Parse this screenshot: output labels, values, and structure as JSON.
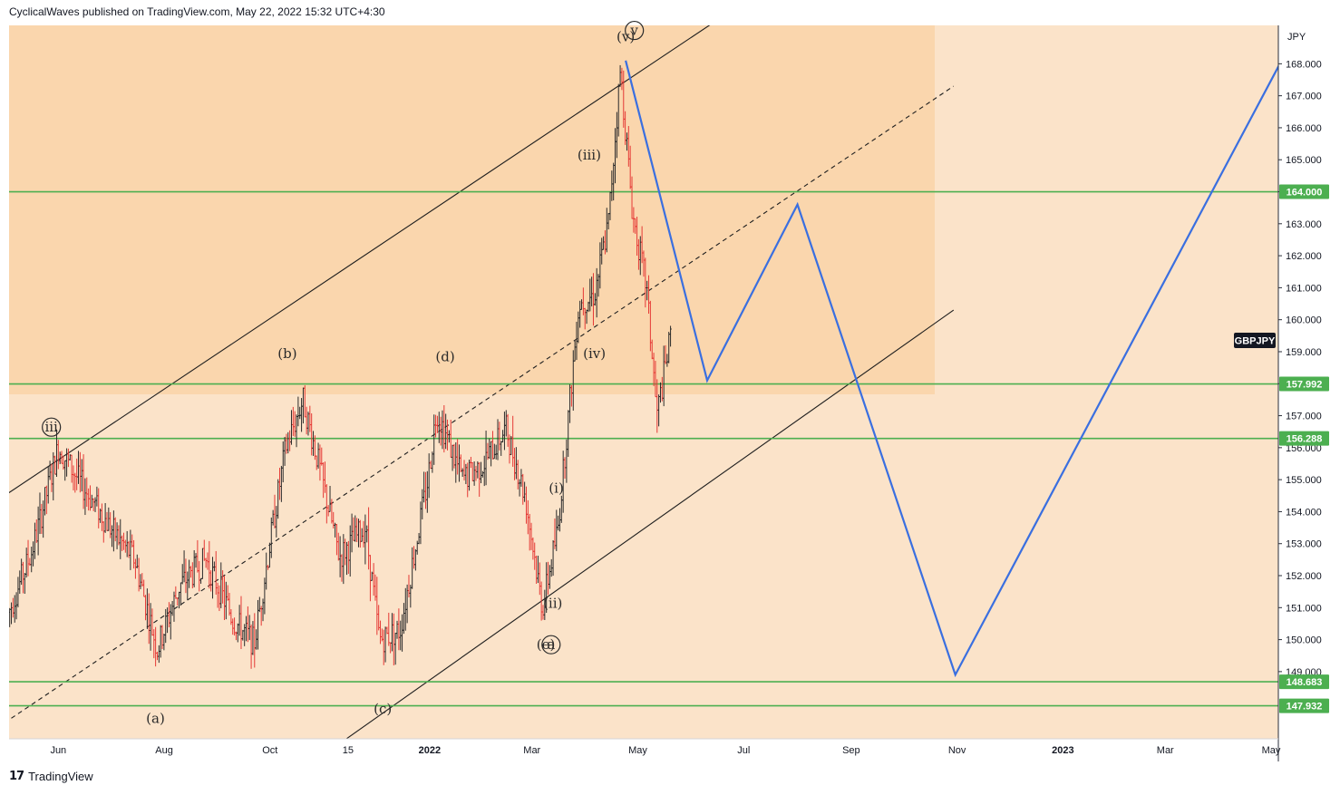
{
  "header": {
    "publisher": "CyclicalWaves",
    "published_text": "published on TradingView.com, May 22, 2022 15:32 UTC+4:30"
  },
  "footer": {
    "brand": "TradingView"
  },
  "chart_data": {
    "type": "candlestick",
    "symbol_tag": "GBPJPY",
    "currency_label": "JPY",
    "ylim": [
      146.9,
      169.2
    ],
    "y_ticks": [
      "149.000",
      "150.000",
      "151.000",
      "152.000",
      "153.000",
      "154.000",
      "155.000",
      "156.000",
      "157.000",
      "158.000",
      "159.000",
      "160.000",
      "161.000",
      "162.000",
      "163.000",
      "164.000",
      "165.000",
      "166.000",
      "167.000",
      "168.000"
    ],
    "x_ticks": [
      {
        "label": "Jun",
        "date": "2021-06-01"
      },
      {
        "label": "Aug",
        "date": "2021-08-01"
      },
      {
        "label": "Oct",
        "date": "2021-10-01"
      },
      {
        "label": "15",
        "date": "2021-11-15"
      },
      {
        "label": "2022",
        "date": "2022-01-01"
      },
      {
        "label": "Mar",
        "date": "2022-03-01"
      },
      {
        "label": "May",
        "date": "2022-05-01"
      },
      {
        "label": "Jul",
        "date": "2022-07-01"
      },
      {
        "label": "Sep",
        "date": "2022-09-01"
      },
      {
        "label": "Nov",
        "date": "2022-11-01"
      },
      {
        "label": "2023",
        "date": "2023-01-01"
      },
      {
        "label": "Mar",
        "date": "2023-03-01"
      },
      {
        "label": "May",
        "date": "2023-05-01"
      }
    ],
    "horizontal_levels": [
      {
        "value": 164.0,
        "label": "164.000"
      },
      {
        "value": 157.992,
        "label": "157.992"
      },
      {
        "value": 156.288,
        "label": "156.288"
      },
      {
        "value": 148.683,
        "label": "148.683"
      },
      {
        "value": 147.932,
        "label": "147.932"
      }
    ],
    "price_path": [
      {
        "date": "2021-05-03",
        "price": 150.8
      },
      {
        "date": "2021-05-17",
        "price": 152.8
      },
      {
        "date": "2021-06-01",
        "price": 156.0
      },
      {
        "date": "2021-06-15",
        "price": 154.8
      },
      {
        "date": "2021-07-01",
        "price": 153.5
      },
      {
        "date": "2021-07-15",
        "price": 152.5
      },
      {
        "date": "2021-07-28",
        "price": 149.7
      },
      {
        "date": "2021-08-10",
        "price": 151.7
      },
      {
        "date": "2021-08-25",
        "price": 152.5
      },
      {
        "date": "2021-09-10",
        "price": 150.6
      },
      {
        "date": "2021-09-22",
        "price": 149.9
      },
      {
        "date": "2021-10-01",
        "price": 153.0
      },
      {
        "date": "2021-10-10",
        "price": 156.0
      },
      {
        "date": "2021-10-20",
        "price": 157.5
      },
      {
        "date": "2021-10-29",
        "price": 155.5
      },
      {
        "date": "2021-11-10",
        "price": 152.6
      },
      {
        "date": "2021-11-25",
        "price": 153.5
      },
      {
        "date": "2021-12-03",
        "price": 150.0
      },
      {
        "date": "2021-12-15",
        "price": 150.3
      },
      {
        "date": "2021-12-31",
        "price": 155.0
      },
      {
        "date": "2022-01-05",
        "price": 157.2
      },
      {
        "date": "2022-01-20",
        "price": 155.0
      },
      {
        "date": "2022-02-01",
        "price": 155.5
      },
      {
        "date": "2022-02-14",
        "price": 156.6
      },
      {
        "date": "2022-02-25",
        "price": 154.5
      },
      {
        "date": "2022-03-07",
        "price": 151.0
      },
      {
        "date": "2022-03-16",
        "price": 153.5
      },
      {
        "date": "2022-03-28",
        "price": 160.5
      },
      {
        "date": "2022-04-06",
        "price": 160.8
      },
      {
        "date": "2022-04-14",
        "price": 163.0
      },
      {
        "date": "2022-04-21",
        "price": 167.8
      },
      {
        "date": "2022-04-28",
        "price": 163.3
      },
      {
        "date": "2022-05-06",
        "price": 161.0
      },
      {
        "date": "2022-05-12",
        "price": 157.0
      },
      {
        "date": "2022-05-20",
        "price": 159.5
      }
    ],
    "projection_path": [
      {
        "date": "2022-04-24",
        "price": 168.1
      },
      {
        "date": "2022-06-10",
        "price": 158.1
      },
      {
        "date": "2022-08-01",
        "price": 163.6
      },
      {
        "date": "2022-10-31",
        "price": 148.9
      },
      {
        "date": "2023-05-10",
        "price": 168.4
      }
    ],
    "channel_upper": [
      {
        "date": "2021-05-01",
        "price": 154.5
      },
      {
        "date": "2022-06-25",
        "price": 169.7
      }
    ],
    "channel_mid": [
      {
        "date": "2021-05-01",
        "price": 147.4
      },
      {
        "date": "2022-10-30",
        "price": 167.3
      }
    ],
    "channel_lower": [
      {
        "date": "2021-11-01",
        "price": 146.4
      },
      {
        "date": "2022-10-30",
        "price": 160.3
      }
    ],
    "wave_labels": [
      {
        "text": "(a)",
        "date": "2021-07-27",
        "price": 147.4
      },
      {
        "text": "(b)",
        "date": "2021-10-11",
        "price": 158.8
      },
      {
        "text": "(c)",
        "date": "2021-12-05",
        "price": 147.7
      },
      {
        "text": "(d)",
        "date": "2022-01-10",
        "price": 158.7
      },
      {
        "text": "(i)",
        "date": "2022-03-15",
        "price": 154.6
      },
      {
        "text": "(ii)",
        "date": "2022-03-13",
        "price": 151.0
      },
      {
        "text": "(iii)",
        "date": "2022-04-03",
        "price": 165.0
      },
      {
        "text": "(iv)",
        "date": "2022-04-06",
        "price": 158.8
      },
      {
        "text": "(v)",
        "date": "2022-04-24",
        "price": 168.7
      },
      {
        "text": "iii",
        "date": "2021-05-28",
        "price": 156.5
      },
      {
        "text": "v",
        "date": "2022-04-29",
        "price": 168.9
      },
      {
        "text": "(e)",
        "date": "2022-03-09",
        "price": 149.7
      },
      {
        "text": "a",
        "date": "2022-03-12",
        "price": 149.7
      }
    ],
    "colors": {
      "background": "#fbe3c9",
      "box_fill": "#fad6ad",
      "level_line": "#4caf50",
      "projection_line": "#3a6fe0",
      "up_bar": "#2a2a2a",
      "down_bar": "#e53935",
      "symbol_tag_bg": "#131722"
    }
  }
}
